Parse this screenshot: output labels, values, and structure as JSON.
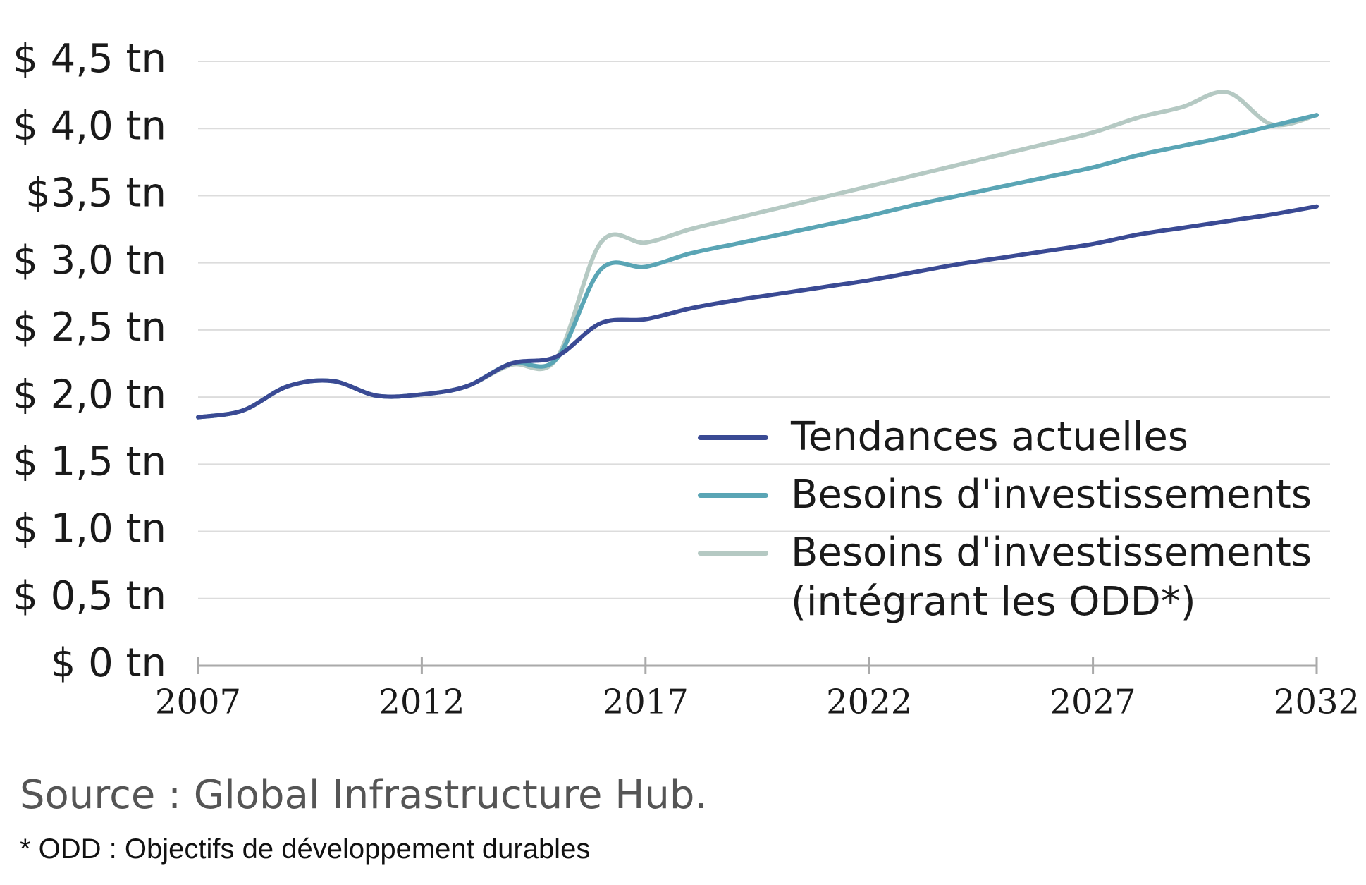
{
  "chart_data": {
    "type": "line",
    "x": [
      2007,
      2008,
      2009,
      2010,
      2011,
      2012,
      2013,
      2014,
      2015,
      2016,
      2017,
      2018,
      2019,
      2020,
      2021,
      2022,
      2023,
      2024,
      2025,
      2026,
      2027,
      2028,
      2029,
      2030,
      2031,
      2032
    ],
    "series": [
      {
        "name": "Tendances actuelles",
        "color": "#3a4a94",
        "values": [
          1.85,
          1.9,
          2.08,
          2.12,
          2.01,
          2.02,
          2.08,
          2.25,
          2.3,
          2.55,
          2.58,
          2.66,
          2.72,
          2.77,
          2.82,
          2.87,
          2.93,
          2.99,
          3.04,
          3.09,
          3.14,
          3.21,
          3.26,
          3.31,
          3.36,
          3.42
        ]
      },
      {
        "name": "Besoins d'investissements",
        "color": "#5aa5b5",
        "values": [
          1.85,
          1.9,
          2.08,
          2.12,
          2.01,
          2.02,
          2.08,
          2.25,
          2.28,
          2.95,
          2.97,
          3.07,
          3.14,
          3.21,
          3.28,
          3.35,
          3.43,
          3.5,
          3.57,
          3.64,
          3.71,
          3.8,
          3.87,
          3.94,
          4.02,
          4.1
        ]
      },
      {
        "name": "Besoins d'investissements (intégrant les ODD*)",
        "color": "#b5c9c3",
        "values": [
          1.85,
          1.9,
          2.08,
          2.12,
          2.01,
          2.02,
          2.08,
          2.24,
          2.28,
          3.15,
          3.15,
          3.25,
          3.33,
          3.41,
          3.49,
          3.57,
          3.65,
          3.73,
          3.81,
          3.89,
          3.97,
          4.08,
          4.16,
          4.27,
          4.03,
          4.1
        ]
      }
    ],
    "xlim": [
      2007,
      2032
    ],
    "xticks": [
      2007,
      2012,
      2017,
      2022,
      2027,
      2032
    ],
    "ylim": [
      0,
      4.5
    ],
    "yticks": [
      {
        "value": 0,
        "label": "$ 0 tn"
      },
      {
        "value": 0.5,
        "label": "$ 0,5 tn"
      },
      {
        "value": 1,
        "label": "$ 1,0 tn"
      },
      {
        "value": 1.5,
        "label": "$ 1,5 tn"
      },
      {
        "value": 2,
        "label": "$ 2,0 tn"
      },
      {
        "value": 2.5,
        "label": "$ 2,5 tn"
      },
      {
        "value": 3,
        "label": "$ 3,0 tn"
      },
      {
        "value": 3.5,
        "label": "$3,5 tn"
      },
      {
        "value": 4,
        "label": "$ 4,0 tn"
      },
      {
        "value": 4.5,
        "label": "$ 4,5 tn"
      }
    ],
    "grid": true,
    "source": "Source : Global Infrastructure Hub.",
    "footnote": "* ODD : Objectifs de développement durables"
  }
}
